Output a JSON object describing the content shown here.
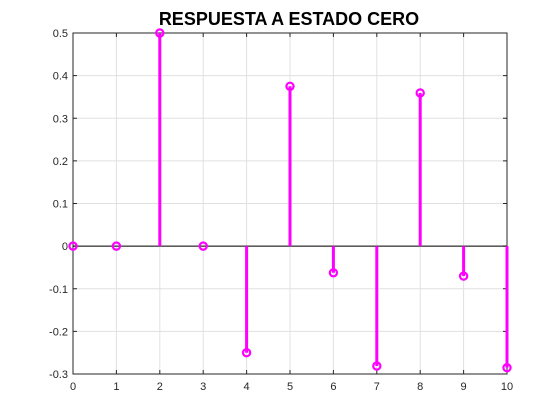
{
  "colors": {
    "series": "#ff00ff",
    "axis": "#262626",
    "grid": "#e0e0e0",
    "background": "#ffffff"
  },
  "chart_data": {
    "type": "stem",
    "title": "RESPUESTA A ESTADO CERO",
    "xlabel": "",
    "ylabel": "",
    "xlim": [
      0,
      10
    ],
    "ylim": [
      -0.3,
      0.5
    ],
    "grid": true,
    "xticks": [
      "0",
      "1",
      "2",
      "3",
      "4",
      "5",
      "6",
      "7",
      "8",
      "9",
      "10"
    ],
    "yticks": [
      "-0.3",
      "-0.2",
      "-0.1",
      "0",
      "0.1",
      "0.2",
      "0.3",
      "0.4",
      "0.5"
    ],
    "series": [
      {
        "x": [
          0,
          1,
          2,
          3,
          4,
          5,
          6,
          7,
          8,
          9,
          10
        ],
        "values": [
          0,
          0,
          0.5,
          0,
          -0.25,
          0.375,
          -0.0625,
          -0.28125,
          0.359375,
          -0.0703125,
          -0.28515625
        ],
        "marker": "circle"
      }
    ]
  }
}
